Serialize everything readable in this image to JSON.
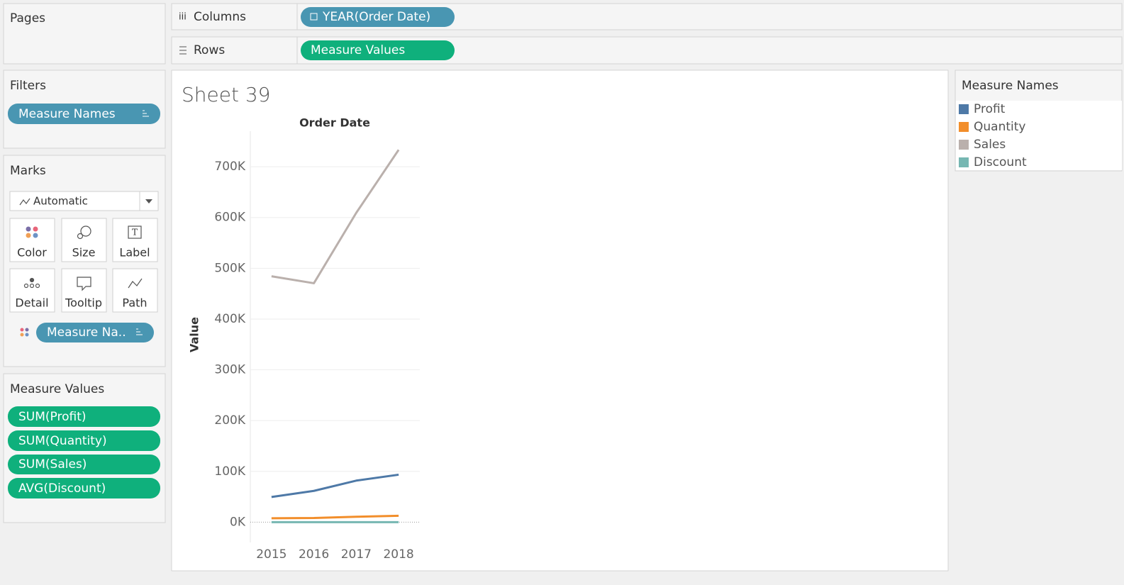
{
  "pages_panel": {
    "title": "Pages"
  },
  "columns_shelf": {
    "label": "Columns",
    "pill": "YEAR(Order Date)"
  },
  "rows_shelf": {
    "label": "Rows",
    "pill": "Measure Values"
  },
  "filters": {
    "title": "Filters",
    "pills": [
      "Measure Names"
    ]
  },
  "marks": {
    "title": "Marks",
    "mark_type": "Automatic",
    "buttons": [
      "Color",
      "Size",
      "Label",
      "Detail",
      "Tooltip",
      "Path"
    ],
    "pill": "Measure Na.."
  },
  "measure_values": {
    "title": "Measure Values",
    "pills": [
      "SUM(Profit)",
      "SUM(Quantity)",
      "SUM(Sales)",
      "AVG(Discount)"
    ]
  },
  "chart_data": {
    "type": "line",
    "title": "Sheet 39",
    "x_label": "Order Date",
    "y_label": "Value",
    "categories": [
      "2015",
      "2016",
      "2017",
      "2018"
    ],
    "series": [
      {
        "name": "Profit",
        "color": "#4e79a7",
        "values": [
          49544,
          61619,
          81795,
          93439
        ]
      },
      {
        "name": "Quantity",
        "color": "#f28e2b",
        "values": [
          7581,
          8124,
          10648,
          12476
        ]
      },
      {
        "name": "Sales",
        "color": "#bab0ac",
        "values": [
          484247,
          470533,
          609206,
          733215
        ]
      },
      {
        "name": "Discount",
        "color": "#76b7b2",
        "values": [
          0.16,
          0.15,
          0.15,
          0.16
        ]
      }
    ],
    "ylim": [
      -40000,
      770000
    ],
    "yticks": [
      {
        "value": 0,
        "label": "0K"
      },
      {
        "value": 100000,
        "label": "100K"
      },
      {
        "value": 200000,
        "label": "200K"
      },
      {
        "value": 300000,
        "label": "300K"
      },
      {
        "value": 400000,
        "label": "400K"
      },
      {
        "value": 500000,
        "label": "500K"
      },
      {
        "value": 600000,
        "label": "600K"
      },
      {
        "value": 700000,
        "label": "700K"
      }
    ],
    "grid": true,
    "legend_title": "Measure Names"
  }
}
